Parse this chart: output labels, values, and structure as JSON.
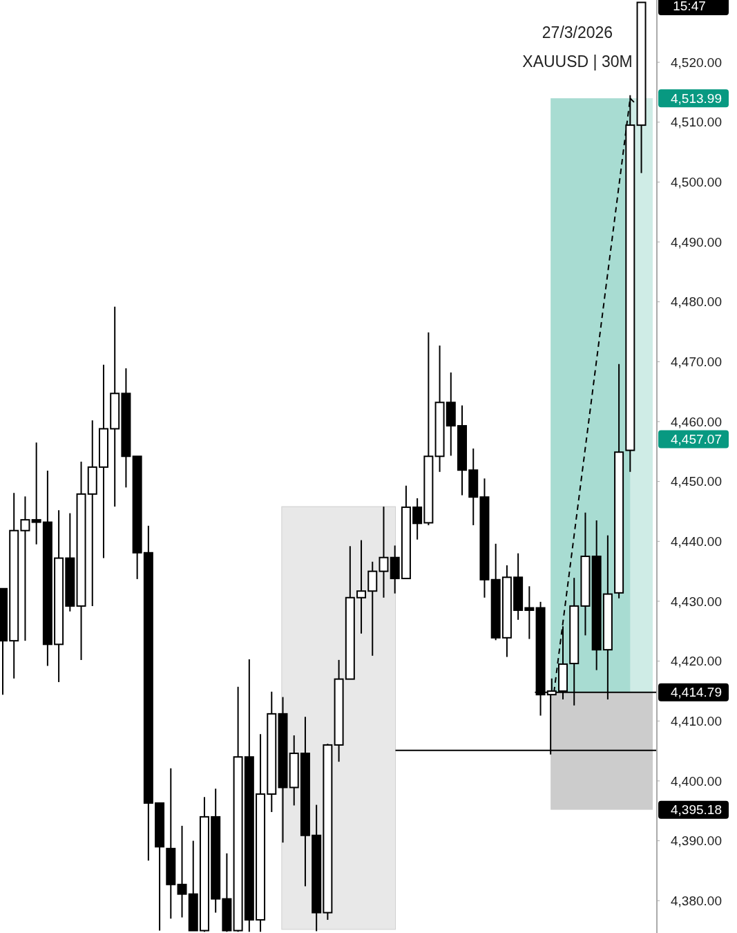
{
  "chart_data": {
    "type": "candlestick",
    "categories": [
      null,
      null,
      null,
      null,
      null,
      null,
      null,
      null,
      null,
      null,
      null,
      null,
      null,
      null,
      null,
      null,
      null,
      null,
      null,
      null,
      null,
      null,
      null,
      null,
      null,
      null,
      null,
      null,
      null,
      null,
      null,
      null,
      null,
      null,
      null,
      null,
      null,
      null,
      null,
      null,
      null,
      null,
      null,
      null,
      null,
      null,
      null,
      null,
      null,
      null,
      null,
      null,
      null,
      null,
      null,
      null,
      null,
      null
    ],
    "ohlc": [
      [
        4432.1,
        4432.1,
        4414.4,
        4423.4
      ],
      [
        4423.4,
        4448.1,
        4417.1,
        4441.8
      ],
      [
        4441.8,
        4447.5,
        4423.4,
        4443.6
      ],
      [
        4443.6,
        4456.5,
        4439.5,
        4443.2
      ],
      [
        4443.2,
        4451.8,
        4419.2,
        4422.8
      ],
      [
        4422.8,
        4445.2,
        4416.5,
        4437.2
      ],
      [
        4437.2,
        4444.7,
        4428.3,
        4429.2
      ],
      [
        4429.2,
        4453.3,
        4420.2,
        4447.9
      ],
      [
        4447.9,
        4460.2,
        4429.2,
        4452.4
      ],
      [
        4452.4,
        4469.5,
        4437.2,
        4458.8
      ],
      [
        4458.8,
        4479.2,
        4445.8,
        4464.7
      ],
      [
        4464.7,
        4468.9,
        4449.0,
        4454.2
      ],
      [
        4454.2,
        4454.2,
        4433.7,
        4438.1
      ],
      [
        4438.1,
        4442.6,
        4386.7,
        4396.3
      ],
      [
        4396.3,
        4396.3,
        4375.0,
        4389.0
      ],
      [
        4388.7,
        4402.1,
        4377.0,
        4382.7
      ],
      [
        4382.7,
        4392.5,
        4377.2,
        4381.1
      ],
      [
        4381.1,
        4390.0,
        4375.0,
        4375.0
      ],
      [
        4375.0,
        4397.3,
        4374.8,
        4394.0
      ],
      [
        4394.0,
        4398.7,
        4378.0,
        4380.3
      ],
      [
        4380.3,
        4387.9,
        4374.8,
        4375.0
      ],
      [
        4375.0,
        4415.7,
        4374.8,
        4404.0
      ],
      [
        4404.0,
        4420.3,
        4374.8,
        4376.8
      ],
      [
        4376.8,
        4407.8,
        4374.8,
        4397.8
      ],
      [
        4397.8,
        4414.9,
        4394.8,
        4411.2
      ],
      [
        4411.2,
        4414.0,
        4389.7,
        4398.9
      ],
      [
        4398.9,
        4407.6,
        4395.9,
        4404.6
      ],
      [
        4404.6,
        4410.7,
        4382.4,
        4390.9
      ],
      [
        4390.9,
        4396.0,
        4374.9,
        4378.0
      ],
      [
        4378.0,
        4406.2,
        4376.8,
        4406.0
      ],
      [
        4406.0,
        4420.2,
        4403.2,
        4417.0
      ],
      [
        4417.0,
        4439.2,
        4417.0,
        4430.6
      ],
      [
        4430.6,
        4440.2,
        4424.6,
        4431.7
      ],
      [
        4431.7,
        4436.6,
        4420.9,
        4435.0
      ],
      [
        4435.0,
        4445.8,
        4430.6,
        4437.3
      ],
      [
        4437.3,
        4439.3,
        4431.3,
        4433.8
      ],
      [
        4433.8,
        4449.3,
        4433.8,
        4445.7
      ],
      [
        4445.7,
        4447.2,
        4440.3,
        4443.0
      ],
      [
        4443.1,
        4474.9,
        4442.7,
        4454.2
      ],
      [
        4454.2,
        4472.7,
        4451.6,
        4463.2
      ],
      [
        4463.2,
        4468.2,
        4454.3,
        4459.3
      ],
      [
        4459.3,
        4462.7,
        4447.7,
        4451.9
      ],
      [
        4451.9,
        4455.5,
        4442.7,
        4447.4
      ],
      [
        4447.4,
        4450.5,
        4430.6,
        4433.6
      ],
      [
        4433.6,
        4439.6,
        4423.5,
        4423.9
      ],
      [
        4423.9,
        4436.0,
        4420.7,
        4434.0
      ],
      [
        4434.0,
        4438.0,
        4426.9,
        4428.5
      ],
      [
        4428.9,
        4432.5,
        4423.7,
        4428.5
      ],
      [
        4428.9,
        4429.9,
        4410.9,
        4414.4
      ],
      [
        4414.4,
        4417.1,
        4414.4,
        4415.0
      ],
      [
        4415.0,
        4425.8,
        4413.6,
        4419.5
      ],
      [
        4419.6,
        4433.9,
        4412.6,
        4429.2
      ],
      [
        4429.2,
        4444.8,
        4424.3,
        4437.5
      ],
      [
        4437.5,
        4443.5,
        4418.5,
        4421.9
      ],
      [
        4421.9,
        4441.0,
        4413.6,
        4431.2
      ],
      [
        4431.4,
        4469.6,
        4430.5,
        4454.9
      ],
      [
        4455.2,
        4514.5,
        4451.6,
        4509.5
      ],
      [
        4509.5,
        4530.0,
        4501.5,
        4530.0
      ]
    ],
    "ylim": [
      4374.6,
      4530.4
    ],
    "yticks": [
      {
        "value": 4380,
        "label": "4,380.00"
      },
      {
        "value": 4390,
        "label": "4,390.00"
      },
      {
        "value": 4400,
        "label": "4,400.00"
      },
      {
        "value": 4410,
        "label": "4,410.00"
      },
      {
        "value": 4420,
        "label": "4,420.00"
      },
      {
        "value": 4430,
        "label": "4,430.00"
      },
      {
        "value": 4440,
        "label": "4,440.00"
      },
      {
        "value": 4450,
        "label": "4,450.00"
      },
      {
        "value": 4460,
        "label": "4,460.00"
      },
      {
        "value": 4470,
        "label": "4,470.00"
      },
      {
        "value": 4480,
        "label": "4,480.00"
      },
      {
        "value": 4490,
        "label": "4,490.00"
      },
      {
        "value": 4500,
        "label": "4,500.00"
      },
      {
        "value": 4510,
        "label": "4,510.00"
      },
      {
        "value": 4520,
        "label": "4,520.00"
      }
    ],
    "bands": [
      {
        "axis": "y",
        "from": 4375.2,
        "to": 4445.8,
        "label": null,
        "color": "#e8e8e8"
      },
      {
        "axis": "y",
        "from": 4414.79,
        "to": 4513.99,
        "label": "4,513.99",
        "color": "#a8dcd2"
      },
      {
        "axis": "y",
        "from": 4395.18,
        "to": 4414.79,
        "label": "4,395.18",
        "color": "#cccccc"
      }
    ],
    "ref_lines": [
      {
        "axis": "y",
        "value": 4414.79,
        "label": "4,414.79",
        "color": "#000000",
        "line_style": "solid"
      },
      {
        "axis": "y",
        "value": 4405.1,
        "label": null,
        "color": "#000000",
        "line_style": "solid"
      }
    ],
    "annotations": [
      "27/3/2026",
      "XAUUSD | 30M",
      "15:47",
      "4,457.07"
    ]
  }
}
